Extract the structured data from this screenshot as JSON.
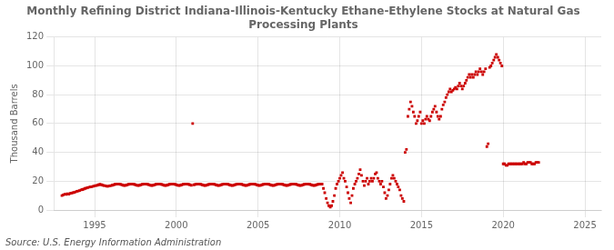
{
  "chart_data": {
    "type": "scatter",
    "title": "Monthly Refining District Indiana-Illinois-Kentucky Ethane-Ethylene Stocks at Natural Gas\nProcessing Plants",
    "ylabel": "Thousand Barrels",
    "annotations": [
      "Source: U.S. Energy Information Administration"
    ],
    "color": "#cc0000",
    "marker": "square",
    "grid": true,
    "xlim": [
      1992.5,
      2026
    ],
    "ylim": [
      0,
      120
    ],
    "xticks": [
      1995,
      2000,
      2005,
      2010,
      2015,
      2020,
      2025
    ],
    "yticks": [
      0,
      20,
      40,
      60,
      80,
      100,
      120
    ],
    "x": [
      1993.0,
      1993.08,
      1993.17,
      1993.25,
      1993.33,
      1993.42,
      1993.5,
      1993.58,
      1993.67,
      1993.75,
      1993.83,
      1993.92,
      1994.0,
      1994.08,
      1994.17,
      1994.25,
      1994.33,
      1994.42,
      1994.5,
      1994.58,
      1994.67,
      1994.75,
      1994.83,
      1994.92,
      1995.0,
      1995.08,
      1995.17,
      1995.25,
      1995.33,
      1995.42,
      1995.5,
      1995.58,
      1995.67,
      1995.75,
      1995.83,
      1995.92,
      1996.0,
      1996.08,
      1996.17,
      1996.25,
      1996.33,
      1996.42,
      1996.5,
      1996.58,
      1996.67,
      1996.75,
      1996.83,
      1996.92,
      1997.0,
      1997.08,
      1997.17,
      1997.25,
      1997.33,
      1997.42,
      1997.5,
      1997.58,
      1997.67,
      1997.75,
      1997.83,
      1997.92,
      1998.0,
      1998.08,
      1998.17,
      1998.25,
      1998.33,
      1998.42,
      1998.5,
      1998.58,
      1998.67,
      1998.75,
      1998.83,
      1998.92,
      1999.0,
      1999.08,
      1999.17,
      1999.25,
      1999.33,
      1999.42,
      1999.5,
      1999.58,
      1999.67,
      1999.75,
      1999.83,
      1999.92,
      2000.0,
      2000.08,
      2000.17,
      2000.25,
      2000.33,
      2000.42,
      2000.5,
      2000.58,
      2000.67,
      2000.75,
      2000.83,
      2000.92,
      2001.0,
      2001.08,
      2001.17,
      2001.25,
      2001.33,
      2001.42,
      2001.5,
      2001.58,
      2001.67,
      2001.75,
      2001.83,
      2001.92,
      2002.0,
      2002.08,
      2002.17,
      2002.25,
      2002.33,
      2002.42,
      2002.5,
      2002.58,
      2002.67,
      2002.75,
      2002.83,
      2002.92,
      2003.0,
      2003.08,
      2003.17,
      2003.25,
      2003.33,
      2003.42,
      2003.5,
      2003.58,
      2003.67,
      2003.75,
      2003.83,
      2003.92,
      2004.0,
      2004.08,
      2004.17,
      2004.25,
      2004.33,
      2004.42,
      2004.5,
      2004.58,
      2004.67,
      2004.75,
      2004.83,
      2004.92,
      2005.0,
      2005.08,
      2005.17,
      2005.25,
      2005.33,
      2005.42,
      2005.5,
      2005.58,
      2005.67,
      2005.75,
      2005.83,
      2005.92,
      2006.0,
      2006.08,
      2006.17,
      2006.25,
      2006.33,
      2006.42,
      2006.5,
      2006.58,
      2006.67,
      2006.75,
      2006.83,
      2006.92,
      2007.0,
      2007.08,
      2007.17,
      2007.25,
      2007.33,
      2007.42,
      2007.5,
      2007.58,
      2007.67,
      2007.75,
      2007.83,
      2007.92,
      2008.0,
      2008.08,
      2008.17,
      2008.25,
      2008.33,
      2008.42,
      2008.5,
      2008.58,
      2008.67,
      2008.75,
      2008.83,
      2008.92,
      2009.0,
      2009.08,
      2009.17,
      2009.25,
      2009.33,
      2009.42,
      2009.5,
      2009.58,
      2009.67,
      2009.75,
      2009.83,
      2009.92,
      2010.0,
      2010.08,
      2010.17,
      2010.25,
      2010.33,
      2010.42,
      2010.5,
      2010.58,
      2010.67,
      2010.75,
      2010.83,
      2010.92,
      2011.0,
      2011.08,
      2011.17,
      2011.25,
      2011.33,
      2011.42,
      2011.5,
      2011.58,
      2011.67,
      2011.75,
      2011.83,
      2011.92,
      2012.0,
      2012.08,
      2012.17,
      2012.25,
      2012.33,
      2012.42,
      2012.5,
      2012.58,
      2012.67,
      2012.75,
      2012.83,
      2012.92,
      2013.0,
      2013.08,
      2013.17,
      2013.25,
      2013.33,
      2013.42,
      2013.5,
      2013.58,
      2013.67,
      2013.75,
      2013.83,
      2013.92,
      2014.0,
      2014.08,
      2014.17,
      2014.25,
      2014.33,
      2014.42,
      2014.5,
      2014.58,
      2014.67,
      2014.75,
      2014.83,
      2014.92,
      2015.0,
      2015.08,
      2015.17,
      2015.25,
      2015.33,
      2015.42,
      2015.5,
      2015.58,
      2015.67,
      2015.75,
      2015.83,
      2015.92,
      2016.0,
      2016.08,
      2016.17,
      2016.25,
      2016.33,
      2016.42,
      2016.5,
      2016.58,
      2016.67,
      2016.75,
      2016.83,
      2016.92,
      2017.0,
      2017.08,
      2017.17,
      2017.25,
      2017.33,
      2017.42,
      2017.5,
      2017.58,
      2017.67,
      2017.75,
      2017.83,
      2017.92,
      2018.0,
      2018.08,
      2018.17,
      2018.25,
      2018.33,
      2018.42,
      2018.5,
      2018.58,
      2018.67,
      2018.75,
      2018.83,
      2018.92,
      2019.0,
      2019.08,
      2019.17,
      2019.25,
      2019.33,
      2019.42,
      2019.5,
      2019.58,
      2019.67,
      2019.75,
      2019.83,
      2019.92,
      2020.0,
      2020.08,
      2020.17,
      2020.25,
      2020.33,
      2020.42,
      2020.5,
      2020.58,
      2020.67,
      2020.75,
      2020.83,
      2020.92,
      2021.0,
      2021.08,
      2021.17,
      2021.25,
      2021.33,
      2021.42,
      2021.5,
      2021.58,
      2021.67,
      2021.75,
      2021.83,
      2021.92,
      2022.0,
      2022.08,
      2022.17
    ],
    "values": [
      10,
      10.5,
      11,
      10.8,
      11.2,
      11,
      11.5,
      11.8,
      12,
      12.2,
      12.5,
      13,
      13.2,
      13.5,
      14,
      14.2,
      14.5,
      15,
      15.2,
      15.5,
      15.8,
      16,
      16.2,
      16.5,
      16.8,
      17,
      17.2,
      17.5,
      17.8,
      17.5,
      17.2,
      17,
      16.8,
      16.5,
      16.5,
      16.8,
      17,
      17.2,
      17.5,
      17.8,
      18,
      18,
      18,
      17.8,
      17.5,
      17.2,
      17,
      17.2,
      17.5,
      17.8,
      18,
      18,
      18,
      17.8,
      17.5,
      17.2,
      17,
      17.2,
      17.5,
      17.8,
      18,
      18,
      18,
      17.8,
      17.5,
      17.2,
      17,
      17.2,
      17.5,
      17.8,
      18,
      18,
      18,
      17.8,
      17.5,
      17.2,
      17,
      17.2,
      17.5,
      17.8,
      18,
      18,
      18,
      17.8,
      17.5,
      17.2,
      17,
      17.2,
      17.5,
      17.8,
      18,
      18,
      18,
      17.8,
      17.5,
      17.2,
      60,
      17.5,
      17.8,
      18,
      18,
      18,
      17.8,
      17.5,
      17.2,
      17,
      17.2,
      17.5,
      17.8,
      18,
      18,
      18,
      17.8,
      17.5,
      17.2,
      17,
      17.2,
      17.5,
      17.8,
      18,
      18,
      18,
      17.8,
      17.5,
      17.2,
      17,
      17.2,
      17.5,
      17.8,
      18,
      18,
      18,
      17.8,
      17.5,
      17.2,
      17,
      17.2,
      17.5,
      17.8,
      18,
      18,
      18,
      17.8,
      17.5,
      17.2,
      17,
      17.2,
      17.5,
      17.8,
      18,
      18,
      18,
      17.8,
      17.5,
      17.2,
      17,
      17.2,
      17.5,
      17.8,
      18,
      18,
      18,
      17.8,
      17.5,
      17.2,
      17,
      17.2,
      17.5,
      17.8,
      18,
      18,
      18,
      17.8,
      17.5,
      17.2,
      17,
      17.2,
      17.5,
      17.8,
      18,
      18,
      18,
      17.8,
      17.5,
      17.2,
      17,
      17.2,
      17.5,
      17.8,
      18,
      18,
      18,
      15,
      12,
      8,
      5,
      3,
      2,
      3,
      6,
      10,
      15,
      18,
      20,
      22,
      24,
      26,
      22,
      20,
      16,
      12,
      8,
      5,
      10,
      15,
      18,
      20,
      22,
      25,
      28,
      24,
      20,
      17,
      20,
      22,
      18,
      20,
      22,
      20,
      22,
      25,
      26,
      22,
      20,
      18,
      20,
      16,
      12,
      8,
      10,
      14,
      18,
      22,
      24,
      22,
      20,
      18,
      16,
      14,
      10,
      8,
      6,
      40,
      42,
      65,
      70,
      75,
      72,
      68,
      65,
      60,
      62,
      65,
      68,
      60,
      62,
      60,
      63,
      65,
      63,
      62,
      65,
      68,
      70,
      72,
      68,
      65,
      63,
      65,
      70,
      73,
      75,
      78,
      80,
      82,
      84,
      82,
      83,
      84,
      85,
      84,
      86,
      88,
      86,
      84,
      86,
      88,
      90,
      92,
      94,
      92,
      94,
      92,
      94,
      96,
      94,
      96,
      98,
      96,
      94,
      96,
      98,
      44,
      46,
      99,
      100,
      102,
      104,
      106,
      108,
      106,
      104,
      102,
      100,
      32,
      32,
      31,
      31,
      32,
      32,
      32,
      32,
      32,
      32,
      32,
      32,
      32,
      32,
      32,
      33,
      32,
      32,
      33,
      33,
      33,
      32,
      32,
      32,
      33,
      33,
      33
    ]
  }
}
